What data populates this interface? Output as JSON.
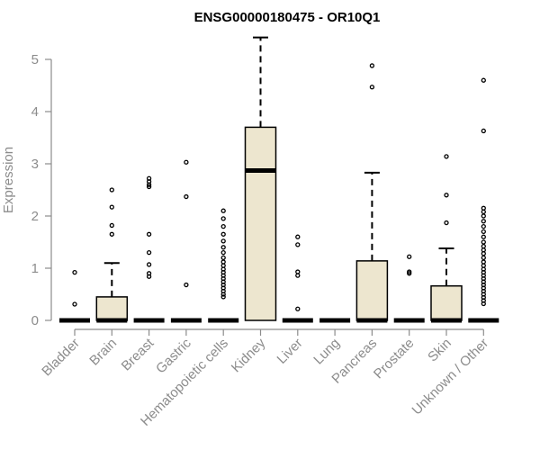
{
  "chart_data": {
    "type": "boxplot",
    "title": "ENSG00000180475 - OR10Q1",
    "xlabel": "",
    "ylabel": "Expression",
    "ylim": [
      0,
      5.5
    ],
    "yticks": [
      0,
      1,
      2,
      3,
      4,
      5
    ],
    "grid": false,
    "box_fill": "#ede6cf",
    "box_stroke": "#000000",
    "outlier_color": "#000000",
    "axis_color": "#8c8c8c",
    "categories": [
      "Bladder",
      "Brain",
      "Breast",
      "Gastric",
      "Hematopoietic cells",
      "Kidney",
      "Liver",
      "Lung",
      "Pancreas",
      "Prostate",
      "Skin",
      "Unknown / Other"
    ],
    "boxes": [
      {
        "q1": 0,
        "median": 0,
        "q3": 0,
        "whisker_low": 0,
        "whisker_high": 0,
        "outliers": [
          0.92,
          0.31
        ]
      },
      {
        "q1": 0,
        "median": 0,
        "q3": 0.45,
        "whisker_low": 0,
        "whisker_high": 1.1,
        "outliers": [
          2.5,
          2.17,
          1.82,
          1.65
        ]
      },
      {
        "q1": 0,
        "median": 0,
        "q3": 0,
        "whisker_low": 0,
        "whisker_high": 0,
        "outliers": [
          2.72,
          2.66,
          2.6,
          2.56,
          1.65,
          1.3,
          1.07,
          0.9,
          0.84
        ]
      },
      {
        "q1": 0,
        "median": 0,
        "q3": 0,
        "whisker_low": 0,
        "whisker_high": 0,
        "outliers": [
          3.03,
          2.37,
          0.68
        ]
      },
      {
        "q1": 0,
        "median": 0,
        "q3": 0,
        "whisker_low": 0,
        "whisker_high": 0,
        "outliers": [
          2.1,
          1.95,
          1.8,
          1.65,
          1.52,
          1.4,
          1.3,
          1.2,
          1.12,
          1.05,
          0.98,
          0.92,
          0.86,
          0.8,
          0.74,
          0.68,
          0.62,
          0.56,
          0.5,
          0.45
        ]
      },
      {
        "q1": 0,
        "median": 2.87,
        "q3": 3.7,
        "whisker_low": 0,
        "whisker_high": 5.42,
        "outliers": []
      },
      {
        "q1": 0,
        "median": 0,
        "q3": 0,
        "whisker_low": 0,
        "whisker_high": 0,
        "outliers": [
          1.6,
          1.45,
          0.93,
          0.86,
          0.22
        ]
      },
      {
        "q1": 0,
        "median": 0,
        "q3": 0,
        "whisker_low": 0,
        "whisker_high": 0,
        "outliers": []
      },
      {
        "q1": 0,
        "median": 0,
        "q3": 1.14,
        "whisker_low": 0,
        "whisker_high": 2.83,
        "outliers": [
          4.88,
          4.47
        ]
      },
      {
        "q1": 0,
        "median": 0,
        "q3": 0,
        "whisker_low": 0,
        "whisker_high": 0,
        "outliers": [
          1.22,
          0.93,
          0.9
        ]
      },
      {
        "q1": 0,
        "median": 0,
        "q3": 0.66,
        "whisker_low": 0,
        "whisker_high": 1.38,
        "outliers": [
          3.14,
          2.4,
          1.87
        ]
      },
      {
        "q1": 0,
        "median": 0,
        "q3": 0,
        "whisker_low": 0,
        "whisker_high": 0,
        "outliers": [
          4.6,
          3.63,
          2.15,
          2.08,
          2.0,
          1.9,
          1.8,
          1.7,
          1.6,
          1.5,
          1.42,
          1.35,
          1.28,
          1.2,
          1.12,
          1.05,
          0.98,
          0.92,
          0.86,
          0.8,
          0.74,
          0.68,
          0.62,
          0.56,
          0.5,
          0.44,
          0.38,
          0.32
        ]
      }
    ]
  }
}
